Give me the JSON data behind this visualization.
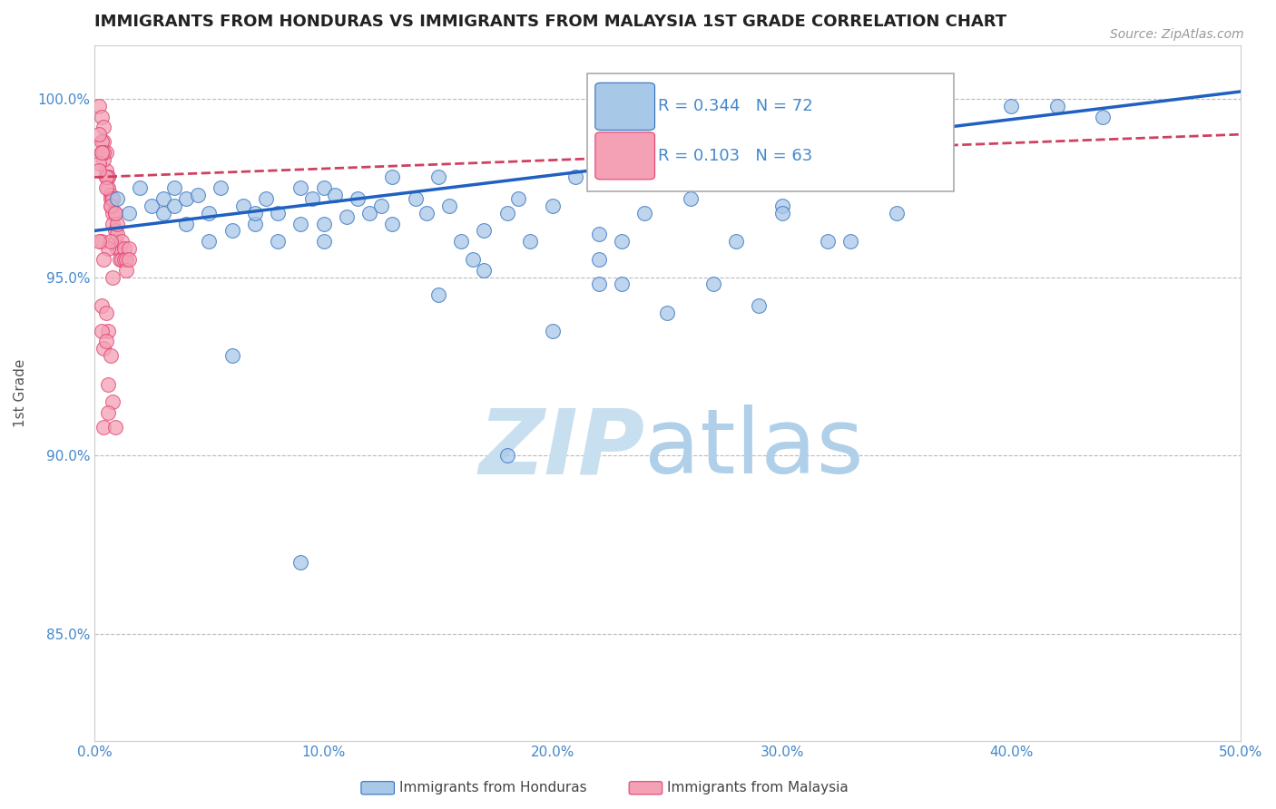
{
  "title": "IMMIGRANTS FROM HONDURAS VS IMMIGRANTS FROM MALAYSIA 1ST GRADE CORRELATION CHART",
  "source_text": "Source: ZipAtlas.com",
  "ylabel": "1st Grade",
  "xlim": [
    0.0,
    0.5
  ],
  "ylim": [
    0.82,
    1.015
  ],
  "xticks": [
    0.0,
    0.1,
    0.2,
    0.3,
    0.4,
    0.5
  ],
  "xtick_labels": [
    "0.0%",
    "10.0%",
    "20.0%",
    "30.0%",
    "40.0%",
    "50.0%"
  ],
  "yticks": [
    0.85,
    0.9,
    0.95,
    1.0
  ],
  "ytick_labels": [
    "85.0%",
    "90.0%",
    "95.0%",
    "100.0%"
  ],
  "blue_R": 0.344,
  "blue_N": 72,
  "pink_R": 0.103,
  "pink_N": 63,
  "blue_color": "#a8c8e8",
  "pink_color": "#f4a0b5",
  "blue_edge_color": "#3070c0",
  "pink_edge_color": "#e04070",
  "blue_line_color": "#2060c0",
  "pink_line_color": "#d04060",
  "watermark_zip_color": "#c8dff0",
  "watermark_atlas_color": "#b0cfe8",
  "legend_label_blue": "Immigrants from Honduras",
  "legend_label_pink": "Immigrants from Malaysia",
  "grid_color": "#bbbbbb",
  "tick_color": "#4488cc",
  "axis_color": "#cccccc",
  "title_fontsize": 13,
  "legend_R_color": "#4488cc",
  "blue_scatter_x": [
    0.01,
    0.015,
    0.02,
    0.025,
    0.03,
    0.03,
    0.035,
    0.035,
    0.04,
    0.04,
    0.045,
    0.05,
    0.05,
    0.055,
    0.06,
    0.065,
    0.07,
    0.075,
    0.08,
    0.08,
    0.09,
    0.09,
    0.095,
    0.1,
    0.1,
    0.105,
    0.11,
    0.115,
    0.12,
    0.125,
    0.13,
    0.14,
    0.145,
    0.15,
    0.155,
    0.16,
    0.165,
    0.17,
    0.18,
    0.185,
    0.19,
    0.2,
    0.21,
    0.22,
    0.22,
    0.23,
    0.24,
    0.25,
    0.26,
    0.27,
    0.28,
    0.29,
    0.3,
    0.32,
    0.33,
    0.35,
    0.4,
    0.42,
    0.44,
    0.3,
    0.25,
    0.2,
    0.15,
    0.1,
    0.07,
    0.06,
    0.22,
    0.18,
    0.13,
    0.09,
    0.17,
    0.23
  ],
  "blue_scatter_y": [
    0.972,
    0.968,
    0.975,
    0.97,
    0.972,
    0.968,
    0.975,
    0.97,
    0.972,
    0.965,
    0.973,
    0.968,
    0.96,
    0.975,
    0.963,
    0.97,
    0.965,
    0.972,
    0.968,
    0.96,
    0.975,
    0.965,
    0.972,
    0.975,
    0.965,
    0.973,
    0.967,
    0.972,
    0.968,
    0.97,
    0.965,
    0.972,
    0.968,
    0.978,
    0.97,
    0.96,
    0.955,
    0.963,
    0.968,
    0.972,
    0.96,
    0.97,
    0.978,
    0.962,
    0.955,
    0.96,
    0.968,
    0.978,
    0.972,
    0.948,
    0.96,
    0.942,
    0.97,
    0.96,
    0.96,
    0.968,
    0.998,
    0.998,
    0.995,
    0.968,
    0.94,
    0.935,
    0.945,
    0.96,
    0.968,
    0.928,
    0.948,
    0.9,
    0.978,
    0.87,
    0.952,
    0.948
  ],
  "pink_scatter_x": [
    0.002,
    0.003,
    0.004,
    0.004,
    0.005,
    0.005,
    0.006,
    0.006,
    0.007,
    0.007,
    0.008,
    0.008,
    0.009,
    0.009,
    0.01,
    0.01,
    0.011,
    0.011,
    0.012,
    0.012,
    0.013,
    0.013,
    0.014,
    0.014,
    0.015,
    0.015,
    0.003,
    0.005,
    0.007,
    0.009,
    0.002,
    0.004,
    0.006,
    0.008,
    0.01,
    0.003,
    0.006,
    0.003,
    0.005,
    0.008,
    0.004,
    0.007,
    0.002,
    0.005,
    0.009,
    0.003,
    0.006,
    0.004,
    0.008,
    0.003,
    0.005,
    0.007,
    0.002,
    0.004,
    0.006,
    0.008,
    0.002,
    0.004,
    0.006,
    0.003,
    0.005,
    0.007,
    0.009
  ],
  "pink_scatter_y": [
    0.998,
    0.995,
    0.992,
    0.988,
    0.985,
    0.98,
    0.978,
    0.975,
    0.973,
    0.97,
    0.968,
    0.965,
    0.963,
    0.96,
    0.962,
    0.958,
    0.958,
    0.955,
    0.955,
    0.96,
    0.958,
    0.955,
    0.955,
    0.952,
    0.958,
    0.955,
    0.988,
    0.978,
    0.972,
    0.968,
    0.99,
    0.983,
    0.978,
    0.972,
    0.965,
    0.96,
    0.935,
    0.985,
    0.978,
    0.972,
    0.985,
    0.97,
    0.982,
    0.975,
    0.968,
    0.942,
    0.958,
    0.955,
    0.95,
    0.985,
    0.94,
    0.96,
    0.98,
    0.93,
    0.92,
    0.915,
    0.96,
    0.908,
    0.912,
    0.935,
    0.932,
    0.928,
    0.908
  ]
}
